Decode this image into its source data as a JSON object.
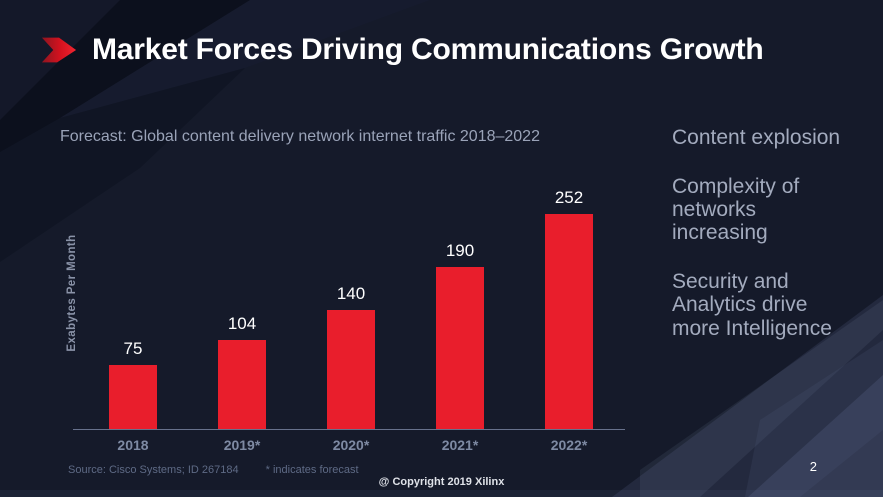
{
  "slide": {
    "title": "Market Forces Driving Communications Growth",
    "subtitle": "Forecast: Global content delivery network internet traffic 2018–2022",
    "page_number": "2",
    "copyright": "@ Copyright 2019 Xilinx",
    "source_note": "Source: Cisco Systems; ID 267184",
    "forecast_note": "* indicates forecast"
  },
  "key_points": [
    "Content explosion",
    "Complexity of networks increasing",
    "Security and Analytics drive more Intelligence"
  ],
  "icons": {
    "logo": "red-chevron-arrow-icon"
  },
  "chart_data": {
    "type": "bar",
    "title": "Forecast: Global content delivery network internet traffic 2018–2022",
    "categories": [
      "2018",
      "2019*",
      "2020*",
      "2021*",
      "2022*"
    ],
    "values": [
      75,
      104,
      140,
      190,
      252
    ],
    "xlabel": "",
    "ylabel": "Exabytes Per Month",
    "ylim": [
      0,
      260
    ],
    "grid": false,
    "legend": false,
    "bar_color": "#e91e2c",
    "value_label_color": "#ffffff",
    "note": "* indicates forecast"
  },
  "colors": {
    "background": "#151a2a",
    "accent_red": "#e91e2c",
    "title_text": "#ffffff",
    "muted_text": "#9aa3b8",
    "tick_text": "#7e8aa3",
    "axis_line": "#67718c",
    "source_text": "#5e6a85"
  }
}
